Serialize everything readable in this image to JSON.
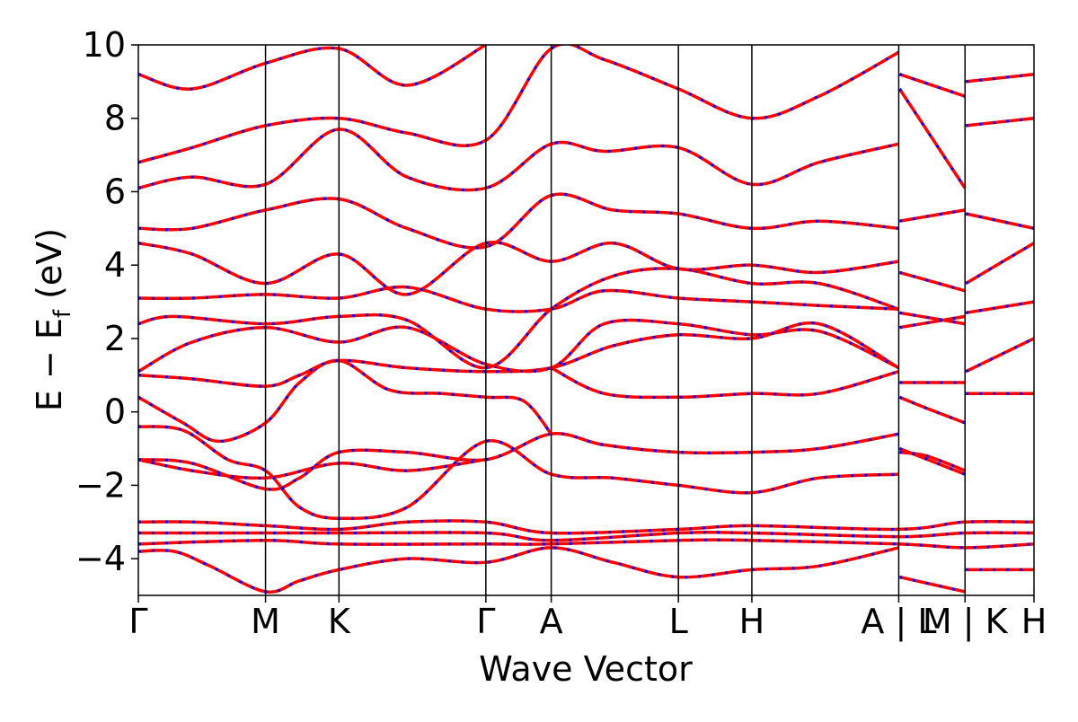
{
  "chart_data": {
    "type": "line",
    "title": "",
    "xlabel": "Wave Vector",
    "ylabel": "E − E",
    "ylabel_sub": "f",
    "ylabel_unit": " (eV)",
    "ylim": [
      -5,
      10
    ],
    "yticks": [
      -4,
      -2,
      0,
      2,
      4,
      6,
      8,
      10
    ],
    "ytick_labels": [
      "−4",
      "−2",
      "0",
      "2",
      "4",
      "6",
      "8",
      "10"
    ],
    "k_path_length": 1.0,
    "high_symmetry_points": [
      {
        "label": "Γ",
        "k": 0.0
      },
      {
        "label": "M",
        "k": 0.142
      },
      {
        "label": "K",
        "k": 0.224
      },
      {
        "label": "Γ",
        "k": 0.388
      },
      {
        "label": "A",
        "k": 0.461
      },
      {
        "label": "L",
        "k": 0.603
      },
      {
        "label": "H",
        "k": 0.685
      },
      {
        "label": "A | L",
        "k": 0.849
      },
      {
        "label": "M | K",
        "k": 0.923
      },
      {
        "label": "H",
        "k": 1.0
      }
    ],
    "vertical_lines_k": [
      0.142,
      0.224,
      0.388,
      0.461,
      0.603,
      0.685,
      0.849,
      0.923
    ],
    "grid": false,
    "colors": {
      "series_a": "#ff0000",
      "series_b": "#0000ff",
      "axis": "#000000"
    },
    "series": [
      {
        "style": "solid",
        "color": "#ff0000",
        "bands": [
          [
            [
              0,
              -3.8
            ],
            [
              0.04,
              -3.8
            ],
            [
              0.08,
              -4.2
            ],
            [
              0.142,
              -4.9
            ],
            [
              0.18,
              -4.6
            ],
            [
              0.224,
              -4.3
            ],
            [
              0.3,
              -4.0
            ],
            [
              0.388,
              -4.1
            ],
            [
              0.461,
              -3.7
            ],
            [
              0.53,
              -4.1
            ],
            [
              0.603,
              -4.5
            ],
            [
              0.685,
              -4.3
            ],
            [
              0.76,
              -4.2
            ],
            [
              0.849,
              -3.7
            ],
            [
              0.85,
              -4.5
            ],
            [
              0.923,
              -4.9
            ],
            [
              0.924,
              -4.3
            ],
            [
              1.0,
              -4.3
            ]
          ],
          [
            [
              0,
              -3.0
            ],
            [
              0.06,
              -3.0
            ],
            [
              0.142,
              -3.1
            ],
            [
              0.224,
              -3.2
            ],
            [
              0.3,
              -3.0
            ],
            [
              0.388,
              -3.0
            ],
            [
              0.461,
              -3.3
            ],
            [
              0.603,
              -3.2
            ],
            [
              0.685,
              -3.1
            ],
            [
              0.849,
              -3.2
            ],
            [
              0.923,
              -3.0
            ],
            [
              1.0,
              -3.0
            ]
          ],
          [
            [
              0,
              -3.3
            ],
            [
              0.142,
              -3.3
            ],
            [
              0.224,
              -3.3
            ],
            [
              0.388,
              -3.3
            ],
            [
              0.461,
              -3.5
            ],
            [
              0.603,
              -3.3
            ],
            [
              0.685,
              -3.3
            ],
            [
              0.849,
              -3.4
            ],
            [
              0.923,
              -3.3
            ],
            [
              1.0,
              -3.3
            ]
          ],
          [
            [
              0,
              -3.6
            ],
            [
              0.142,
              -3.5
            ],
            [
              0.224,
              -3.6
            ],
            [
              0.388,
              -3.6
            ],
            [
              0.461,
              -3.6
            ],
            [
              0.603,
              -3.5
            ],
            [
              0.685,
              -3.5
            ],
            [
              0.849,
              -3.6
            ],
            [
              0.923,
              -3.7
            ],
            [
              1.0,
              -3.6
            ]
          ],
          [
            [
              0,
              -1.3
            ],
            [
              0.06,
              -1.4
            ],
            [
              0.142,
              -2.1
            ],
            [
              0.18,
              -1.8
            ],
            [
              0.224,
              -1.1
            ],
            [
              0.3,
              -1.1
            ],
            [
              0.388,
              -1.3
            ],
            [
              0.461,
              -0.6
            ],
            [
              0.52,
              -0.9
            ],
            [
              0.603,
              -1.1
            ],
            [
              0.685,
              -1.1
            ],
            [
              0.76,
              -1.0
            ],
            [
              0.849,
              -0.6
            ],
            [
              0.85,
              -1.1
            ],
            [
              0.88,
              -1.2
            ],
            [
              0.923,
              -1.6
            ]
          ],
          [
            [
              0,
              -1.3
            ],
            [
              0.06,
              -1.6
            ],
            [
              0.142,
              -1.8
            ],
            [
              0.224,
              -1.4
            ],
            [
              0.3,
              -1.6
            ],
            [
              0.388,
              -1.3
            ]
          ],
          [
            [
              0,
              -0.4
            ],
            [
              0.05,
              -0.5
            ],
            [
              0.1,
              -1.3
            ],
            [
              0.142,
              -1.6
            ],
            [
              0.18,
              -2.6
            ],
            [
              0.224,
              -2.9
            ],
            [
              0.3,
              -2.6
            ],
            [
              0.388,
              -0.8
            ],
            [
              0.461,
              -1.7
            ],
            [
              0.53,
              -1.8
            ],
            [
              0.603,
              -2.0
            ],
            [
              0.685,
              -2.2
            ],
            [
              0.76,
              -1.8
            ],
            [
              0.849,
              -1.7
            ],
            [
              0.85,
              -1.0
            ],
            [
              0.923,
              -1.7
            ]
          ],
          [
            [
              0,
              0.4
            ],
            [
              0.05,
              -0.3
            ],
            [
              0.09,
              -0.8
            ],
            [
              0.142,
              -0.3
            ],
            [
              0.18,
              0.8
            ],
            [
              0.224,
              1.4
            ],
            [
              0.28,
              0.6
            ],
            [
              0.34,
              0.5
            ],
            [
              0.388,
              0.4
            ],
            [
              0.43,
              0.3
            ],
            [
              0.461,
              -0.6
            ]
          ],
          [
            [
              0.461,
              1.2
            ],
            [
              0.52,
              0.5
            ],
            [
              0.603,
              0.4
            ],
            [
              0.685,
              0.5
            ],
            [
              0.76,
              0.5
            ],
            [
              0.849,
              1.1
            ],
            [
              0.85,
              0.4
            ],
            [
              0.88,
              0.1
            ],
            [
              0.923,
              -0.3
            ],
            [
              0.924,
              0.5
            ],
            [
              1.0,
              0.5
            ]
          ],
          [
            [
              0,
              1.0
            ],
            [
              0.06,
              0.9
            ],
            [
              0.142,
              0.7
            ],
            [
              0.18,
              1.0
            ],
            [
              0.224,
              1.4
            ],
            [
              0.3,
              1.2
            ],
            [
              0.388,
              1.1
            ],
            [
              0.461,
              1.2
            ],
            [
              0.53,
              1.8
            ],
            [
              0.603,
              2.1
            ],
            [
              0.685,
              2.0
            ],
            [
              0.76,
              2.4
            ],
            [
              0.849,
              1.2
            ],
            [
              0.85,
              0.8
            ],
            [
              0.923,
              0.8
            ],
            [
              0.924,
              1.1
            ],
            [
              1.0,
              2.0
            ]
          ],
          [
            [
              0,
              1.1
            ],
            [
              0.06,
              1.9
            ],
            [
              0.142,
              2.3
            ],
            [
              0.224,
              1.9
            ],
            [
              0.3,
              2.3
            ],
            [
              0.388,
              1.3
            ],
            [
              0.461,
              1.2
            ],
            [
              0.52,
              2.4
            ],
            [
              0.603,
              2.4
            ],
            [
              0.685,
              2.1
            ],
            [
              0.76,
              2.2
            ],
            [
              0.849,
              1.2
            ]
          ],
          [
            [
              0,
              2.4
            ],
            [
              0.04,
              2.6
            ],
            [
              0.142,
              2.4
            ],
            [
              0.224,
              2.6
            ],
            [
              0.3,
              2.5
            ],
            [
              0.388,
              1.2
            ],
            [
              0.461,
              2.8
            ],
            [
              0.53,
              3.7
            ],
            [
              0.603,
              3.9
            ],
            [
              0.685,
              3.5
            ],
            [
              0.76,
              3.5
            ],
            [
              0.849,
              2.8
            ],
            [
              0.85,
              2.3
            ],
            [
              0.923,
              2.6
            ],
            [
              0.924,
              2.7
            ],
            [
              1.0,
              3.0
            ]
          ],
          [
            [
              0,
              3.1
            ],
            [
              0.06,
              3.1
            ],
            [
              0.142,
              3.2
            ],
            [
              0.224,
              3.1
            ],
            [
              0.3,
              3.4
            ],
            [
              0.388,
              2.8
            ],
            [
              0.461,
              2.8
            ],
            [
              0.52,
              3.3
            ],
            [
              0.603,
              3.1
            ],
            [
              0.685,
              3.0
            ],
            [
              0.76,
              2.9
            ],
            [
              0.849,
              2.8
            ],
            [
              0.85,
              2.7
            ],
            [
              0.923,
              2.4
            ]
          ],
          [
            [
              0,
              4.6
            ],
            [
              0.06,
              4.3
            ],
            [
              0.142,
              3.5
            ],
            [
              0.224,
              4.3
            ],
            [
              0.3,
              3.2
            ],
            [
              0.388,
              4.6
            ],
            [
              0.461,
              4.1
            ],
            [
              0.53,
              4.6
            ],
            [
              0.603,
              3.9
            ],
            [
              0.685,
              4.0
            ],
            [
              0.76,
              3.8
            ],
            [
              0.849,
              4.1
            ],
            [
              0.85,
              3.8
            ],
            [
              0.923,
              3.3
            ],
            [
              0.924,
              3.5
            ],
            [
              1.0,
              4.6
            ]
          ],
          [
            [
              0,
              5.0
            ],
            [
              0.06,
              5.0
            ],
            [
              0.142,
              5.5
            ],
            [
              0.224,
              5.8
            ],
            [
              0.3,
              5.0
            ],
            [
              0.388,
              4.5
            ],
            [
              0.461,
              5.9
            ],
            [
              0.53,
              5.5
            ],
            [
              0.603,
              5.4
            ],
            [
              0.685,
              5.0
            ],
            [
              0.76,
              5.2
            ],
            [
              0.849,
              5.0
            ],
            [
              0.85,
              5.2
            ],
            [
              0.923,
              5.5
            ],
            [
              0.924,
              5.4
            ],
            [
              1.0,
              5.0
            ]
          ],
          [
            [
              0,
              6.1
            ],
            [
              0.06,
              6.4
            ],
            [
              0.142,
              6.2
            ],
            [
              0.224,
              7.7
            ],
            [
              0.3,
              6.4
            ],
            [
              0.388,
              6.1
            ],
            [
              0.461,
              7.3
            ],
            [
              0.52,
              7.1
            ],
            [
              0.603,
              7.2
            ],
            [
              0.685,
              6.2
            ],
            [
              0.76,
              6.8
            ],
            [
              0.849,
              7.3
            ],
            [
              0.85,
              8.8
            ],
            [
              0.923,
              6.1
            ],
            [
              0.924,
              7.8
            ],
            [
              1.0,
              8.0
            ]
          ],
          [
            [
              0,
              6.8
            ],
            [
              0.06,
              7.2
            ],
            [
              0.142,
              7.8
            ],
            [
              0.224,
              8.0
            ],
            [
              0.3,
              7.6
            ],
            [
              0.388,
              7.4
            ],
            [
              0.461,
              9.9
            ],
            [
              0.52,
              9.6
            ],
            [
              0.603,
              8.8
            ],
            [
              0.685,
              8.0
            ],
            [
              0.76,
              8.6
            ],
            [
              0.849,
              9.8
            ],
            [
              0.85,
              9.2
            ],
            [
              0.923,
              8.6
            ],
            [
              0.924,
              9.0
            ],
            [
              1.0,
              9.2
            ]
          ],
          [
            [
              0,
              9.2
            ],
            [
              0.06,
              8.8
            ],
            [
              0.142,
              9.5
            ],
            [
              0.224,
              9.9
            ],
            [
              0.3,
              8.9
            ],
            [
              0.388,
              10.0
            ]
          ]
        ]
      },
      {
        "style": "dashed",
        "color": "#0000ff",
        "bands": "same as solid series (overlapping)"
      }
    ]
  }
}
